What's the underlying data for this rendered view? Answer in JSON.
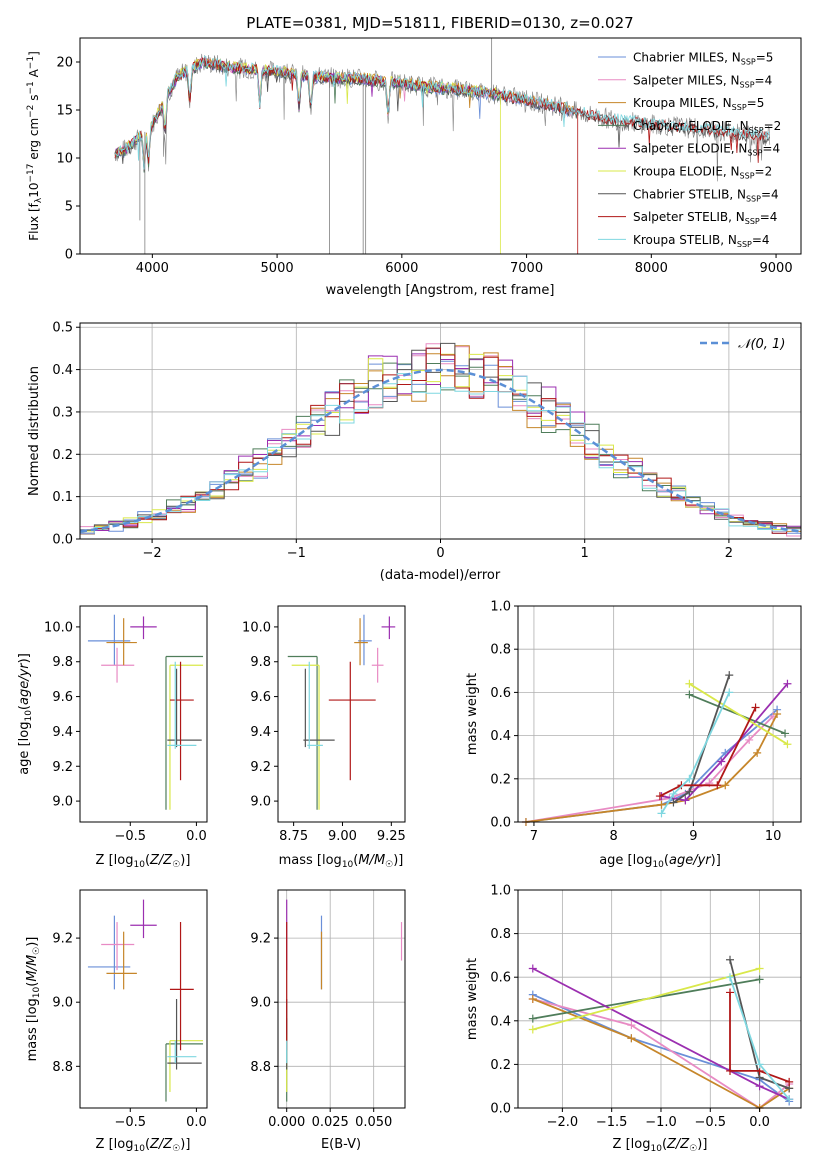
{
  "figure": {
    "title": "PLATE=0381, MJD=51811, FIBERID=0130, z=0.027"
  },
  "colors": {
    "chabrier_miles": "#6a8fd8",
    "salpeter_miles": "#e88bc4",
    "kroupa_miles": "#c6862a",
    "chabrier_elodie": "#4f7d5a",
    "salpeter_elodie": "#9b2fb0",
    "kroupa_elodie": "#d9e84a",
    "chabrier_stelib": "#555555",
    "salpeter_stelib": "#b01717",
    "kroupa_stelib": "#7fd7e0",
    "raw_spectrum": "#808080",
    "normal": "#5b8fd6"
  },
  "legend": {
    "spectrum": [
      {
        "key": "chabrier_miles",
        "label": "Chabrier MILES, N",
        "sub": "SSP",
        "tail": "=5"
      },
      {
        "key": "salpeter_miles",
        "label": "Salpeter MILES, N",
        "sub": "SSP",
        "tail": "=4"
      },
      {
        "key": "kroupa_miles",
        "label": "Kroupa MILES, N",
        "sub": "SSP",
        "tail": "=5"
      },
      {
        "key": "chabrier_elodie",
        "label": "Chabrier ELODIE, N",
        "sub": "SSP",
        "tail": "=2"
      },
      {
        "key": "salpeter_elodie",
        "label": "Salpeter ELODIE, N",
        "sub": "SSP",
        "tail": "=4"
      },
      {
        "key": "kroupa_elodie",
        "label": "Kroupa ELODIE, N",
        "sub": "SSP",
        "tail": "=2"
      },
      {
        "key": "chabrier_stelib",
        "label": "Chabrier STELIB, N",
        "sub": "SSP",
        "tail": "=4"
      },
      {
        "key": "salpeter_stelib",
        "label": "Salpeter STELIB, N",
        "sub": "SSP",
        "tail": "=4"
      },
      {
        "key": "kroupa_stelib",
        "label": "Kroupa STELIB, N",
        "sub": "SSP",
        "tail": "=4"
      }
    ],
    "normal": "N(0, 1)"
  },
  "chart_data": [
    {
      "type": "line",
      "id": "spectrum",
      "title": "PLATE=0381, MJD=51811, FIBERID=0130, z=0.027",
      "xlabel": "wavelength [Angstrom, rest frame]",
      "ylabel": "Flux [f_λ 10^-17 erg cm^-2 s^-1 A^-1]",
      "xlim": [
        3420,
        9200
      ],
      "ylim": [
        0,
        22.5
      ],
      "xticks": [
        4000,
        5000,
        6000,
        7000,
        8000,
        9000
      ],
      "yticks": [
        0,
        5,
        10,
        15,
        20
      ],
      "data_x": [
        3700,
        3800,
        3900,
        4000,
        4100,
        4200,
        4300,
        4400,
        4600,
        4800,
        5000,
        5200,
        5400,
        5600,
        5800,
        6000,
        6200,
        6400,
        6600,
        6800,
        7000,
        7200,
        7400,
        7600,
        7800,
        8000,
        8200,
        8400,
        8600,
        8800,
        8950
      ],
      "data_y": [
        10.5,
        11.0,
        12.2,
        13.5,
        16.0,
        18.5,
        19.2,
        20.0,
        19.5,
        19.2,
        19.0,
        18.6,
        18.4,
        18.3,
        18.1,
        17.8,
        17.4,
        17.2,
        16.9,
        16.6,
        16.0,
        15.5,
        14.8,
        14.2,
        13.8,
        13.5,
        13.3,
        13.0,
        12.7,
        12.4,
        12.2
      ],
      "grid": false,
      "legend_position": "upper-right"
    },
    {
      "type": "line",
      "id": "residuals",
      "xlabel": "(data-model)/error",
      "ylabel": "Normed distribution",
      "xlim": [
        -2.5,
        2.5
      ],
      "ylim": [
        0,
        0.51
      ],
      "xticks": [
        -2,
        -1,
        0,
        1,
        2
      ],
      "yticks": [
        0,
        0.1,
        0.2,
        0.3,
        0.4,
        0.5
      ],
      "bin_width": 0.1,
      "grid": true,
      "legend_position": "upper-right",
      "series": [
        {
          "name": "N(0, 1)",
          "dist": "normal",
          "mean": 0,
          "sigma": 1
        }
      ]
    },
    {
      "type": "scatter",
      "id": "age_vs_Z",
      "xlabel": "Z [log10(Z/Z☉)]",
      "ylabel": "age [log10(age/yr)]",
      "xlim": [
        -0.88,
        0.08
      ],
      "ylim": [
        8.88,
        10.12
      ],
      "xticks": [
        -0.5,
        0.0
      ],
      "yticks": [
        9.0,
        9.2,
        9.4,
        9.6,
        9.8,
        10.0
      ],
      "points": [
        {
          "key": "chabrier_miles",
          "x": -0.62,
          "y": 9.92,
          "xlo": -0.82,
          "xhi": -0.5,
          "ylo": 9.78,
          "yhi": 10.07
        },
        {
          "key": "salpeter_miles",
          "x": -0.6,
          "y": 9.78,
          "xlo": -0.72,
          "xhi": -0.47,
          "ylo": 9.68,
          "yhi": 9.88
        },
        {
          "key": "kroupa_miles",
          "x": -0.55,
          "y": 9.91,
          "xlo": -0.68,
          "xhi": -0.45,
          "ylo": 9.78,
          "yhi": 10.05
        },
        {
          "key": "salpeter_elodie",
          "x": -0.4,
          "y": 10.0,
          "xlo": -0.5,
          "xhi": -0.3,
          "ylo": 9.93,
          "yhi": 10.06
        },
        {
          "key": "chabrier_elodie",
          "x": -0.23,
          "y": 9.83,
          "xlo": -0.23,
          "xhi": 0.05,
          "ylo": 8.95,
          "yhi": 9.83
        },
        {
          "key": "kroupa_elodie",
          "x": -0.2,
          "y": 9.78,
          "xlo": -0.2,
          "xhi": 0.05,
          "ylo": 8.95,
          "yhi": 9.78
        },
        {
          "key": "chabrier_stelib",
          "x": -0.15,
          "y": 9.35,
          "xlo": -0.22,
          "xhi": 0.04,
          "ylo": 9.31,
          "yhi": 9.76
        },
        {
          "key": "salpeter_stelib",
          "x": -0.12,
          "y": 9.58,
          "xlo": -0.2,
          "xhi": -0.02,
          "ylo": 9.12,
          "yhi": 9.8
        },
        {
          "key": "kroupa_stelib",
          "x": -0.16,
          "y": 9.32,
          "xlo": -0.22,
          "xhi": 0.0,
          "ylo": 9.3,
          "yhi": 9.8
        }
      ]
    },
    {
      "type": "scatter",
      "id": "age_vs_mass",
      "xlabel": "mass [log10(M/M☉)]",
      "xlim": [
        8.67,
        9.32
      ],
      "ylim": [
        8.88,
        10.12
      ],
      "xticks": [
        8.75,
        9.0,
        9.25
      ],
      "yticks": [
        9.0,
        9.2,
        9.4,
        9.6,
        9.8,
        10.0
      ],
      "points": [
        {
          "key": "chabrier_miles",
          "x": 9.11,
          "y": 9.92,
          "xlo": 9.08,
          "xhi": 9.15,
          "ylo": 9.78,
          "yhi": 10.07
        },
        {
          "key": "salpeter_miles",
          "x": 9.18,
          "y": 9.78,
          "xlo": 9.15,
          "xhi": 9.21,
          "ylo": 9.68,
          "yhi": 9.88
        },
        {
          "key": "kroupa_miles",
          "x": 9.09,
          "y": 9.91,
          "xlo": 9.06,
          "xhi": 9.13,
          "ylo": 9.78,
          "yhi": 10.05
        },
        {
          "key": "salpeter_elodie",
          "x": 9.24,
          "y": 10.0,
          "xlo": 9.2,
          "xhi": 9.27,
          "ylo": 9.93,
          "yhi": 10.06
        },
        {
          "key": "chabrier_elodie",
          "x": 8.87,
          "y": 9.83,
          "xlo": 8.72,
          "xhi": 8.87,
          "ylo": 8.95,
          "yhi": 9.83
        },
        {
          "key": "kroupa_elodie",
          "x": 8.88,
          "y": 9.78,
          "xlo": 8.74,
          "xhi": 8.88,
          "ylo": 8.95,
          "yhi": 9.78
        },
        {
          "key": "chabrier_stelib",
          "x": 8.81,
          "y": 9.35,
          "xlo": 8.8,
          "xhi": 8.96,
          "ylo": 9.31,
          "yhi": 9.76
        },
        {
          "key": "salpeter_stelib",
          "x": 9.04,
          "y": 9.58,
          "xlo": 8.93,
          "xhi": 9.17,
          "ylo": 9.12,
          "yhi": 9.8
        },
        {
          "key": "kroupa_stelib",
          "x": 8.83,
          "y": 9.32,
          "xlo": 8.82,
          "xhi": 8.9,
          "ylo": 9.3,
          "yhi": 9.8
        }
      ]
    },
    {
      "type": "line",
      "id": "massweight_vs_age",
      "xlabel": "age [log10(age/yr)]",
      "ylabel": "mass weight",
      "xlim": [
        6.8,
        10.35
      ],
      "ylim": [
        0,
        1.0
      ],
      "xticks": [
        7,
        8,
        9,
        10
      ],
      "yticks": [
        0,
        0.2,
        0.4,
        0.6,
        0.8,
        1.0
      ],
      "grid": true,
      "series": [
        {
          "key": "chabrier_miles",
          "x": [
            6.9,
            8.6,
            8.9,
            9.4,
            10.05
          ],
          "y": [
            0.0,
            0.08,
            0.13,
            0.32,
            0.52
          ]
        },
        {
          "key": "salpeter_miles",
          "x": [
            6.9,
            8.7,
            9.2,
            9.7,
            10.0
          ],
          "y": [
            0.0,
            0.11,
            0.18,
            0.38,
            0.49
          ]
        },
        {
          "key": "kroupa_miles",
          "x": [
            6.9,
            8.6,
            8.9,
            9.4,
            9.8,
            10.05
          ],
          "y": [
            0.0,
            0.08,
            0.1,
            0.17,
            0.32,
            0.5
          ]
        },
        {
          "key": "chabrier_elodie",
          "x": [
            8.95,
            10.15
          ],
          "y": [
            0.59,
            0.41
          ]
        },
        {
          "key": "salpeter_elodie",
          "x": [
            8.6,
            8.9,
            9.35,
            10.18
          ],
          "y": [
            0.12,
            0.1,
            0.28,
            0.64
          ]
        },
        {
          "key": "kroupa_elodie",
          "x": [
            8.95,
            10.18
          ],
          "y": [
            0.64,
            0.36
          ]
        },
        {
          "key": "chabrier_stelib",
          "x": [
            8.75,
            8.95,
            9.45
          ],
          "y": [
            0.09,
            0.14,
            0.68
          ]
        },
        {
          "key": "salpeter_stelib",
          "x": [
            8.58,
            8.85,
            9.3,
            9.78
          ],
          "y": [
            0.12,
            0.17,
            0.17,
            0.53
          ]
        },
        {
          "key": "kroupa_stelib",
          "x": [
            8.6,
            8.75,
            8.95,
            9.45
          ],
          "y": [
            0.04,
            0.13,
            0.2,
            0.6
          ]
        }
      ]
    },
    {
      "type": "scatter",
      "id": "mass_vs_Z",
      "xlabel": "Z [log10(Z/Z☉)]",
      "ylabel": "mass [log10(M/M☉)]",
      "xlim": [
        -0.88,
        0.08
      ],
      "ylim": [
        8.67,
        9.35
      ],
      "xticks": [
        -0.5,
        0.0
      ],
      "yticks": [
        8.8,
        9.0,
        9.2
      ],
      "points": [
        {
          "key": "chabrier_miles",
          "x": -0.62,
          "y": 9.11,
          "xlo": -0.82,
          "xhi": -0.5,
          "ylo": 9.04,
          "yhi": 9.27
        },
        {
          "key": "salpeter_miles",
          "x": -0.6,
          "y": 9.18,
          "xlo": -0.72,
          "xhi": -0.47,
          "ylo": 9.1,
          "yhi": 9.25
        },
        {
          "key": "kroupa_miles",
          "x": -0.55,
          "y": 9.09,
          "xlo": -0.68,
          "xhi": -0.45,
          "ylo": 9.04,
          "yhi": 9.22
        },
        {
          "key": "salpeter_elodie",
          "x": -0.4,
          "y": 9.24,
          "xlo": -0.5,
          "xhi": -0.3,
          "ylo": 9.2,
          "yhi": 9.32
        },
        {
          "key": "chabrier_elodie",
          "x": -0.23,
          "y": 8.87,
          "xlo": -0.23,
          "xhi": 0.05,
          "ylo": 8.69,
          "yhi": 8.87
        },
        {
          "key": "kroupa_elodie",
          "x": -0.2,
          "y": 8.88,
          "xlo": -0.2,
          "xhi": 0.05,
          "ylo": 8.72,
          "yhi": 8.88
        },
        {
          "key": "chabrier_stelib",
          "x": -0.15,
          "y": 8.81,
          "xlo": -0.22,
          "xhi": 0.04,
          "ylo": 8.79,
          "yhi": 9.01
        },
        {
          "key": "salpeter_stelib",
          "x": -0.12,
          "y": 9.04,
          "xlo": -0.2,
          "xhi": -0.02,
          "ylo": 8.85,
          "yhi": 9.25
        },
        {
          "key": "kroupa_stelib",
          "x": -0.16,
          "y": 8.83,
          "xlo": -0.22,
          "xhi": 0.0,
          "ylo": 8.81,
          "yhi": 8.88
        }
      ]
    },
    {
      "type": "scatter",
      "id": "mass_vs_ebv",
      "xlabel": "E(B-V)",
      "xlim": [
        -0.005,
        0.068
      ],
      "ylim": [
        8.67,
        9.35
      ],
      "xticks": [
        0.0,
        0.025,
        0.05
      ],
      "yticks": [
        8.8,
        9.0,
        9.2
      ],
      "points": [
        {
          "key": "chabrier_miles",
          "x": 0.02,
          "y": 9.11,
          "ylo": 9.04,
          "yhi": 9.27
        },
        {
          "key": "salpeter_miles",
          "x": 0.066,
          "y": 9.18,
          "ylo": 9.13,
          "yhi": 9.25
        },
        {
          "key": "kroupa_miles",
          "x": 0.02,
          "y": 9.09,
          "ylo": 9.04,
          "yhi": 9.22
        },
        {
          "key": "salpeter_elodie",
          "x": 0.0,
          "y": 9.24,
          "ylo": 9.1,
          "yhi": 9.32
        },
        {
          "key": "chabrier_elodie",
          "x": 0.0,
          "y": 8.87,
          "ylo": 8.69,
          "yhi": 8.95
        },
        {
          "key": "kroupa_elodie",
          "x": 0.0,
          "y": 8.88,
          "ylo": 8.72,
          "yhi": 8.9
        },
        {
          "key": "chabrier_stelib",
          "x": 0.0,
          "y": 8.81,
          "ylo": 8.79,
          "yhi": 9.01
        },
        {
          "key": "salpeter_stelib",
          "x": 0.0,
          "y": 9.04,
          "ylo": 8.85,
          "yhi": 9.25
        },
        {
          "key": "kroupa_stelib",
          "x": 0.0,
          "y": 8.83,
          "ylo": 8.81,
          "yhi": 8.88
        }
      ]
    },
    {
      "type": "line",
      "id": "massweight_vs_Z",
      "xlabel": "Z [log10(Z/Z☉)]",
      "ylabel": "mass weight",
      "xlim": [
        -2.45,
        0.42
      ],
      "ylim": [
        0,
        1.0
      ],
      "xticks": [
        -2.0,
        -1.5,
        -1.0,
        -0.5,
        0.0
      ],
      "yticks": [
        0,
        0.2,
        0.4,
        0.6,
        0.8,
        1.0
      ],
      "grid": true,
      "series": [
        {
          "key": "chabrier_miles",
          "x": [
            -2.3,
            -1.3,
            0.0,
            0.3
          ],
          "y": [
            0.52,
            0.32,
            0.13,
            0.03
          ]
        },
        {
          "key": "salpeter_miles",
          "x": [
            -2.3,
            -1.3,
            0.0,
            0.3
          ],
          "y": [
            0.5,
            0.38,
            0.0,
            0.11
          ]
        },
        {
          "key": "kroupa_miles",
          "x": [
            -2.3,
            -1.3,
            0.0,
            0.3
          ],
          "y": [
            0.5,
            0.32,
            0.0,
            0.09
          ]
        },
        {
          "key": "chabrier_elodie",
          "x": [
            -2.3,
            0.0
          ],
          "y": [
            0.41,
            0.59
          ]
        },
        {
          "key": "salpeter_elodie",
          "x": [
            -2.3,
            0.0,
            0.3
          ],
          "y": [
            0.64,
            0.1,
            0.04
          ]
        },
        {
          "key": "kroupa_elodie",
          "x": [
            -2.3,
            0.0
          ],
          "y": [
            0.36,
            0.64
          ]
        },
        {
          "key": "chabrier_stelib",
          "x": [
            -0.3,
            0.0,
            0.3
          ],
          "y": [
            0.68,
            0.14,
            0.09
          ]
        },
        {
          "key": "salpeter_stelib",
          "x": [
            -0.3,
            -0.3,
            0.0,
            0.3
          ],
          "y": [
            0.53,
            0.17,
            0.17,
            0.12
          ]
        },
        {
          "key": "kroupa_stelib",
          "x": [
            -0.3,
            0.0,
            0.3
          ],
          "y": [
            0.6,
            0.2,
            0.04
          ]
        }
      ]
    }
  ]
}
